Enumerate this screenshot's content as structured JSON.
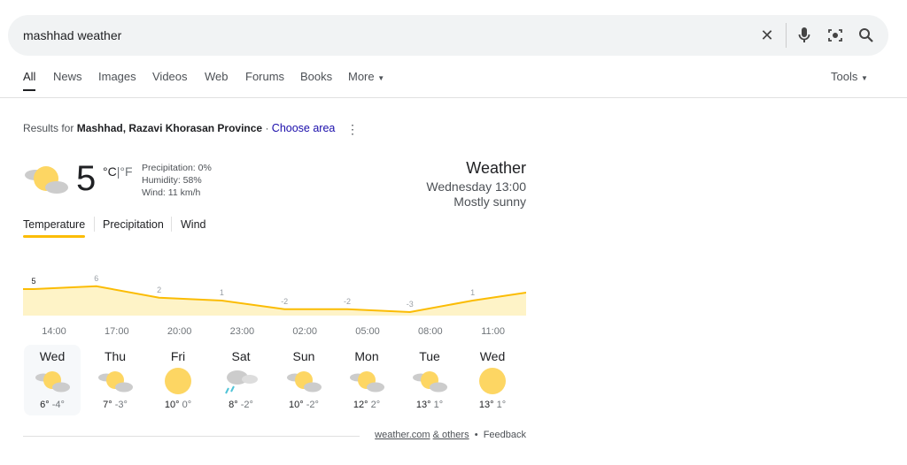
{
  "search": {
    "query": "mashhad weather",
    "icons": [
      "close-icon",
      "mic-icon",
      "lens-icon",
      "search-icon"
    ]
  },
  "tabs": [
    "All",
    "News",
    "Images",
    "Videos",
    "Web",
    "Forums",
    "Books",
    "More",
    "Tools"
  ],
  "results": {
    "prefix": "Results for",
    "place": "Mashhad, Razavi Khorasan Province",
    "separator": "·",
    "choose": "Choose area"
  },
  "current": {
    "temp": "5",
    "unit_c": "°C",
    "unit_sep": "|",
    "unit_f": "°F",
    "precip": "Precipitation: 0%",
    "humidity": "Humidity: 58%",
    "wind": "Wind: 11 km/h",
    "icon": "partly-sunny-icon"
  },
  "header": {
    "title": "Weather",
    "time": "Wednesday 13:00",
    "condition": "Mostly sunny"
  },
  "chart_tabs": [
    "Temperature",
    "Precipitation",
    "Wind"
  ],
  "chart_data": {
    "type": "area",
    "x": [
      "14:00",
      "17:00",
      "20:00",
      "23:00",
      "02:00",
      "05:00",
      "08:00",
      "11:00"
    ],
    "values": [
      5,
      6,
      2,
      1,
      -2,
      -2,
      -3,
      1
    ],
    "labels": [
      "5",
      "6",
      "2",
      "1",
      "-2",
      "-2",
      "-3",
      "1"
    ],
    "color": "#fbbc04",
    "fill": "#fef3c7"
  },
  "days": [
    {
      "name": "Wed",
      "icon": "partly",
      "high": "6°",
      "low": "-4°"
    },
    {
      "name": "Thu",
      "icon": "partly",
      "high": "7°",
      "low": "-3°"
    },
    {
      "name": "Fri",
      "icon": "sunny",
      "high": "10°",
      "low": "0°"
    },
    {
      "name": "Sat",
      "icon": "rain",
      "high": "8°",
      "low": "-2°"
    },
    {
      "name": "Sun",
      "icon": "partly",
      "high": "10°",
      "low": "-2°"
    },
    {
      "name": "Mon",
      "icon": "partly",
      "high": "12°",
      "low": "2°"
    },
    {
      "name": "Tue",
      "icon": "partly",
      "high": "13°",
      "low": "1°"
    },
    {
      "name": "Wed",
      "icon": "sunny",
      "high": "13°",
      "low": "1°"
    }
  ],
  "footer": {
    "source": "weather.com",
    "others": "& others",
    "dot": "•",
    "feedback": "Feedback"
  }
}
